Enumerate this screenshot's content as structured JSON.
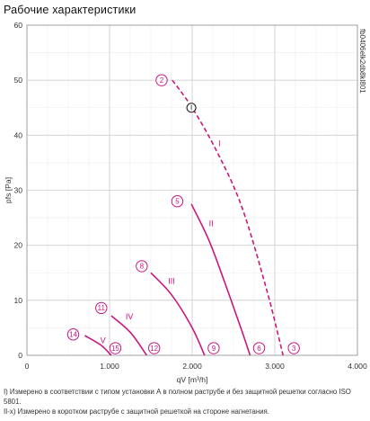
{
  "title": "Рабочие характеристики",
  "chart_data": {
    "type": "line",
    "xlabel": "qV [m³/h]",
    "ylabel": "pfs [Pa]",
    "xlim": [
      0,
      4000
    ],
    "ylim": [
      0,
      60
    ],
    "x_ticks": [
      "0",
      "1.000",
      "2.000",
      "3.000",
      "4.000"
    ],
    "y_ticks": [
      "0",
      "10",
      "20",
      "30",
      "40",
      "50",
      "60"
    ],
    "grid": true,
    "series": [
      {
        "name": "I",
        "style": "dashed",
        "label_x": 2330,
        "label_y": 38,
        "start_marker": "2",
        "end_marker": "3",
        "x": [
          1760,
          2000,
          2300,
          2600,
          2900,
          3100
        ],
        "y": [
          50,
          45,
          37,
          27,
          12,
          0
        ]
      },
      {
        "name": "II",
        "style": "solid",
        "label_x": 2230,
        "label_y": 23.5,
        "start_marker": "5",
        "end_marker": "6",
        "x": [
          1990,
          2200,
          2400,
          2600,
          2700
        ],
        "y": [
          27.5,
          21,
          13,
          4.5,
          0
        ]
      },
      {
        "name": "III",
        "style": "solid",
        "label_x": 1750,
        "label_y": 13,
        "start_marker": "8",
        "end_marker": "9",
        "x": [
          1500,
          1750,
          2000,
          2150
        ],
        "y": [
          15,
          11,
          5,
          0
        ]
      },
      {
        "name": "IV",
        "style": "solid",
        "label_x": 1240,
        "label_y": 6.5,
        "start_marker": "11",
        "end_marker": "12",
        "x": [
          1020,
          1250,
          1450
        ],
        "y": [
          7.2,
          4.2,
          0
        ]
      },
      {
        "name": "V",
        "style": "solid",
        "label_x": 920,
        "label_y": 2.2,
        "start_marker": "14",
        "end_marker": "15",
        "x": [
          700,
          900,
          1020
        ],
        "y": [
          3.6,
          1.8,
          0
        ]
      }
    ],
    "markers": [
      {
        "text": "2",
        "x": 1630,
        "y": 50
      },
      {
        "text": "3",
        "x": 3230,
        "y": 1.3
      },
      {
        "text": "5",
        "x": 1820,
        "y": 28
      },
      {
        "text": "6",
        "x": 2810,
        "y": 1.3
      },
      {
        "text": "8",
        "x": 1390,
        "y": 16.2
      },
      {
        "text": "9",
        "x": 2260,
        "y": 1.3
      },
      {
        "text": "11",
        "x": 900,
        "y": 8.6
      },
      {
        "text": "12",
        "x": 1540,
        "y": 1.3
      },
      {
        "text": "14",
        "x": 560,
        "y": 3.8
      },
      {
        "text": "15",
        "x": 1070,
        "y": 1.3
      }
    ],
    "operating_point": {
      "text": "I",
      "x": 1990,
      "y": 45
    },
    "side_code": "fb0406elk2db8kl801"
  },
  "notes": [
    "I) Измерено в соответствии с типом установки А в полном раструбе и без защитной решетки согласно ISO 5801.",
    "II-x) Измерено в коротком раструбе с защитной решеткой на стороне нагнетания."
  ]
}
